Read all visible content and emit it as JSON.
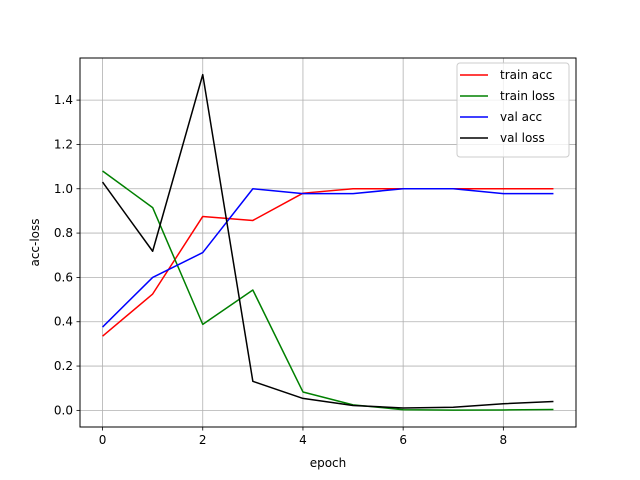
{
  "chart_data": {
    "type": "line",
    "xlabel": "epoch",
    "ylabel": "acc-loss",
    "xlim": [
      -0.45,
      9.45
    ],
    "ylim": [
      -0.075,
      1.59
    ],
    "xticks": [
      0,
      2,
      4,
      6,
      8
    ],
    "yticks": [
      0.0,
      0.2,
      0.4,
      0.6,
      0.8,
      1.0,
      1.2,
      1.4
    ],
    "grid": true,
    "legend_position": "top-right",
    "x": [
      0,
      1,
      2,
      3,
      4,
      5,
      6,
      7,
      8,
      9
    ],
    "series": [
      {
        "name": "train acc",
        "color": "#ff0000",
        "values": [
          0.335,
          0.525,
          0.875,
          0.857,
          0.98,
          1.0,
          1.0,
          1.0,
          1.0,
          1.0
        ]
      },
      {
        "name": "train loss",
        "color": "#008000",
        "values": [
          1.08,
          0.915,
          0.388,
          0.543,
          0.083,
          0.025,
          0.003,
          0.001,
          0.002,
          0.004
        ]
      },
      {
        "name": "val acc",
        "color": "#0000ff",
        "values": [
          0.376,
          0.6,
          0.712,
          1.0,
          0.978,
          0.978,
          1.0,
          1.0,
          0.978,
          0.978
        ]
      },
      {
        "name": "val loss",
        "color": "#000000",
        "values": [
          1.03,
          0.718,
          1.515,
          0.131,
          0.054,
          0.022,
          0.011,
          0.014,
          0.03,
          0.04
        ]
      }
    ]
  }
}
